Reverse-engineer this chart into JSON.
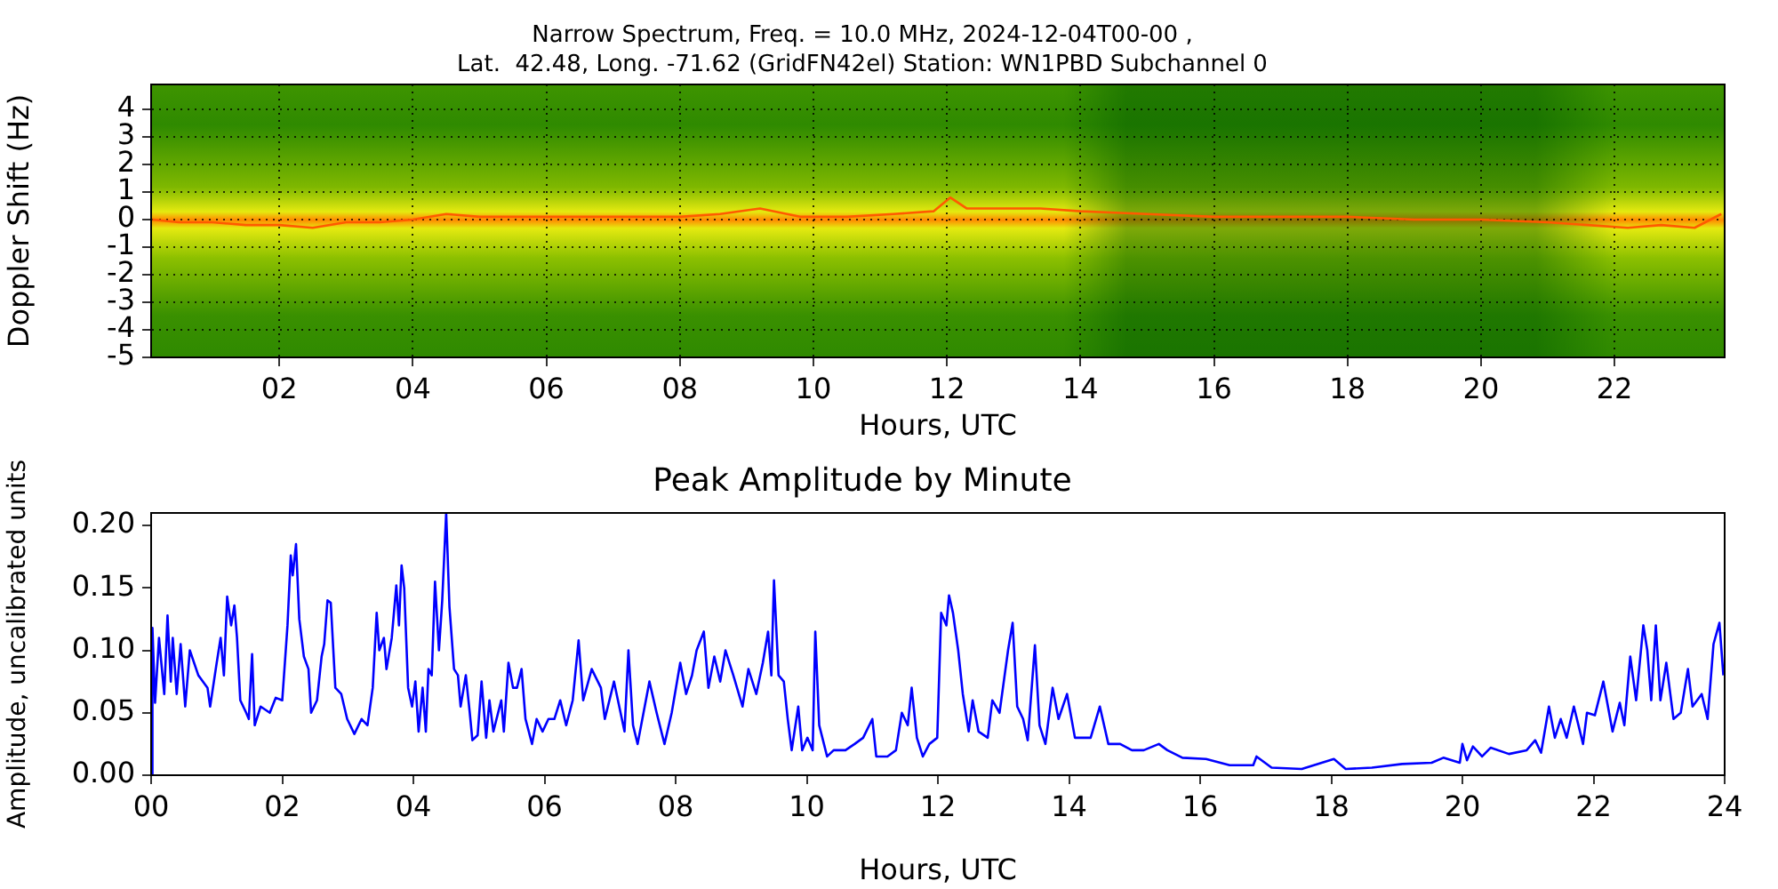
{
  "chart_data": [
    {
      "type": "line",
      "title": "Narrow Spectrum, Freq. = 10.0 MHz, 2024-12-04T00-00 ,\nLat.  42.48, Long. -71.62 (GridFN42el) Station: WN1PBD Subchannel 0",
      "xlabel": "Hours, UTC",
      "ylabel": "Doppler Shift (Hz)",
      "xlim": [
        0.08,
        23.65
      ],
      "xticks": [
        {
          "value": 2,
          "label": "02"
        },
        {
          "value": 4,
          "label": "04"
        },
        {
          "value": 6,
          "label": "06"
        },
        {
          "value": 8,
          "label": "08"
        },
        {
          "value": 10,
          "label": "10"
        },
        {
          "value": 12,
          "label": "12"
        },
        {
          "value": 14,
          "label": "14"
        },
        {
          "value": 16,
          "label": "16"
        },
        {
          "value": 18,
          "label": "18"
        },
        {
          "value": 20,
          "label": "20"
        },
        {
          "value": 22,
          "label": "22"
        }
      ],
      "ylim": [
        -5,
        4.9
      ],
      "yticks": [
        -5,
        -4,
        -3,
        -2,
        -1,
        0,
        1,
        2,
        3,
        4
      ],
      "grid": true,
      "marker": "none",
      "line_style": "solid",
      "series": [
        {
          "color": "#ff5a00",
          "x": [
            0.1,
            0.5,
            1.0,
            1.5,
            2.0,
            2.5,
            3.0,
            3.5,
            4.0,
            4.5,
            5.0,
            6.0,
            7.0,
            8.0,
            8.6,
            9.2,
            9.8,
            10.5,
            11.2,
            11.8,
            12.05,
            12.3,
            12.8,
            13.4,
            14.0,
            15.0,
            16.0,
            17.0,
            18.0,
            19.0,
            20.0,
            21.0,
            21.6,
            22.2,
            22.7,
            23.2,
            23.6
          ],
          "values": [
            0.0,
            -0.1,
            -0.1,
            -0.2,
            -0.2,
            -0.3,
            -0.1,
            -0.1,
            0.0,
            0.2,
            0.1,
            0.1,
            0.1,
            0.1,
            0.2,
            0.4,
            0.1,
            0.1,
            0.2,
            0.3,
            0.8,
            0.4,
            0.4,
            0.4,
            0.3,
            0.2,
            0.1,
            0.1,
            0.1,
            0.0,
            0.0,
            -0.1,
            -0.2,
            -0.3,
            -0.2,
            -0.3,
            0.2
          ]
        }
      ]
    },
    {
      "type": "line",
      "title": "Peak Amplitude by Minute",
      "xlabel": "Hours, UTC",
      "ylabel": "Amplitude, uncalibrated units",
      "xlim": [
        0,
        24
      ],
      "xticks": [
        {
          "value": 0,
          "label": "00"
        },
        {
          "value": 2,
          "label": "02"
        },
        {
          "value": 4,
          "label": "04"
        },
        {
          "value": 6,
          "label": "06"
        },
        {
          "value": 8,
          "label": "08"
        },
        {
          "value": 10,
          "label": "10"
        },
        {
          "value": 12,
          "label": "12"
        },
        {
          "value": 14,
          "label": "14"
        },
        {
          "value": 16,
          "label": "16"
        },
        {
          "value": 18,
          "label": "18"
        },
        {
          "value": 20,
          "label": "20"
        },
        {
          "value": 22,
          "label": "22"
        },
        {
          "value": 24,
          "label": "24"
        }
      ],
      "ylim": [
        0,
        0.21
      ],
      "yticks": [
        {
          "value": 0,
          "label": "0.00"
        },
        {
          "value": 0.05,
          "label": "0.05"
        },
        {
          "value": 0.1,
          "label": "0.10"
        },
        {
          "value": 0.15,
          "label": "0.15"
        },
        {
          "value": 0.2,
          "label": "0.20"
        }
      ],
      "grid": false,
      "marker": "none",
      "line_style": "solid",
      "series": [
        {
          "color": "#0000ff",
          "x": [
            0,
            0.02,
            0.06,
            0.12,
            0.2,
            0.25,
            0.3,
            0.33,
            0.39,
            0.45,
            0.52,
            0.59,
            0.72,
            0.86,
            0.9,
            1.0,
            1.06,
            1.11,
            1.16,
            1.22,
            1.27,
            1.31,
            1.36,
            1.45,
            1.49,
            1.54,
            1.58,
            1.67,
            1.81,
            1.9,
            2.0,
            2.08,
            2.13,
            2.16,
            2.21,
            2.26,
            2.33,
            2.4,
            2.44,
            2.53,
            2.6,
            2.64,
            2.69,
            2.74,
            2.81,
            2.9,
            2.99,
            3.1,
            3.21,
            3.3,
            3.38,
            3.44,
            3.48,
            3.55,
            3.59,
            3.67,
            3.74,
            3.78,
            3.82,
            3.86,
            3.92,
            3.98,
            4.03,
            4.08,
            4.14,
            4.19,
            4.23,
            4.28,
            4.33,
            4.39,
            4.44,
            4.5,
            4.55,
            4.62,
            4.68,
            4.72,
            4.8,
            4.86,
            4.9,
            4.98,
            5.04,
            5.11,
            5.16,
            5.22,
            5.34,
            5.38,
            5.45,
            5.52,
            5.58,
            5.65,
            5.71,
            5.81,
            5.88,
            5.97,
            6.06,
            6.15,
            6.24,
            6.33,
            6.43,
            6.52,
            6.59,
            6.72,
            6.86,
            6.92,
            7.06,
            7.22,
            7.28,
            7.35,
            7.42,
            7.51,
            7.6,
            7.71,
            7.83,
            7.94,
            8.07,
            8.16,
            8.25,
            8.32,
            8.43,
            8.5,
            8.59,
            8.68,
            8.76,
            8.88,
            9.02,
            9.11,
            9.23,
            9.33,
            9.41,
            9.46,
            9.5,
            9.57,
            9.65,
            9.71,
            9.77,
            9.87,
            9.93,
            10.01,
            10.09,
            10.13,
            10.19,
            10.31,
            10.41,
            10.59,
            10.73,
            10.86,
            11.0,
            11.06,
            11.23,
            11.36,
            11.45,
            11.54,
            11.6,
            11.68,
            11.77,
            11.87,
            11.99,
            12.05,
            12.13,
            12.17,
            12.23,
            12.31,
            12.38,
            12.47,
            12.53,
            12.62,
            12.76,
            12.83,
            12.94,
            13.07,
            13.14,
            13.21,
            13.3,
            13.37,
            13.48,
            13.55,
            13.64,
            13.75,
            13.84,
            13.97,
            14.09,
            14.2,
            14.33,
            14.47,
            14.6,
            14.78,
            14.96,
            15.14,
            15.37,
            15.5,
            15.73,
            16.09,
            16.45,
            16.81,
            16.86,
            17.09,
            17.55,
            18.04,
            18.22,
            18.62,
            19.08,
            19.53,
            19.71,
            19.96,
            20.0,
            20.07,
            20.16,
            20.3,
            20.43,
            20.71,
            20.98,
            21.11,
            21.2,
            21.32,
            21.41,
            21.5,
            21.59,
            21.7,
            21.84,
            21.9,
            22.02,
            22.15,
            22.29,
            22.4,
            22.47,
            22.56,
            22.65,
            22.76,
            22.82,
            22.88,
            22.95,
            23.02,
            23.11,
            23.22,
            23.33,
            23.44,
            23.51,
            23.65,
            23.74,
            23.83,
            23.92,
            23.98
          ],
          "values": [
            0.0,
            0.118,
            0.058,
            0.11,
            0.065,
            0.128,
            0.075,
            0.11,
            0.065,
            0.105,
            0.055,
            0.1,
            0.08,
            0.07,
            0.055,
            0.09,
            0.11,
            0.08,
            0.143,
            0.12,
            0.136,
            0.11,
            0.06,
            0.05,
            0.045,
            0.097,
            0.04,
            0.055,
            0.05,
            0.062,
            0.06,
            0.12,
            0.176,
            0.16,
            0.185,
            0.125,
            0.095,
            0.085,
            0.05,
            0.06,
            0.095,
            0.105,
            0.14,
            0.138,
            0.07,
            0.065,
            0.045,
            0.033,
            0.045,
            0.04,
            0.07,
            0.13,
            0.1,
            0.11,
            0.085,
            0.11,
            0.152,
            0.12,
            0.168,
            0.15,
            0.07,
            0.055,
            0.075,
            0.035,
            0.07,
            0.035,
            0.085,
            0.08,
            0.155,
            0.1,
            0.14,
            0.21,
            0.135,
            0.085,
            0.08,
            0.055,
            0.08,
            0.05,
            0.028,
            0.032,
            0.075,
            0.03,
            0.06,
            0.035,
            0.06,
            0.035,
            0.09,
            0.07,
            0.07,
            0.085,
            0.045,
            0.025,
            0.045,
            0.035,
            0.045,
            0.045,
            0.06,
            0.04,
            0.06,
            0.108,
            0.06,
            0.085,
            0.07,
            0.045,
            0.075,
            0.035,
            0.1,
            0.04,
            0.025,
            0.05,
            0.075,
            0.05,
            0.025,
            0.05,
            0.09,
            0.065,
            0.08,
            0.1,
            0.115,
            0.07,
            0.095,
            0.075,
            0.1,
            0.08,
            0.055,
            0.085,
            0.065,
            0.09,
            0.115,
            0.08,
            0.156,
            0.08,
            0.075,
            0.045,
            0.02,
            0.055,
            0.02,
            0.03,
            0.02,
            0.115,
            0.04,
            0.015,
            0.02,
            0.02,
            0.025,
            0.03,
            0.045,
            0.015,
            0.015,
            0.02,
            0.05,
            0.04,
            0.07,
            0.03,
            0.015,
            0.025,
            0.03,
            0.13,
            0.12,
            0.144,
            0.13,
            0.1,
            0.065,
            0.035,
            0.06,
            0.035,
            0.03,
            0.06,
            0.05,
            0.1,
            0.122,
            0.055,
            0.045,
            0.028,
            0.104,
            0.04,
            0.025,
            0.07,
            0.045,
            0.065,
            0.03,
            0.03,
            0.03,
            0.055,
            0.025,
            0.025,
            0.02,
            0.02,
            0.025,
            0.02,
            0.014,
            0.013,
            0.008,
            0.008,
            0.015,
            0.006,
            0.005,
            0.013,
            0.005,
            0.006,
            0.009,
            0.01,
            0.014,
            0.01,
            0.025,
            0.012,
            0.023,
            0.015,
            0.022,
            0.017,
            0.02,
            0.028,
            0.018,
            0.055,
            0.03,
            0.045,
            0.03,
            0.055,
            0.025,
            0.05,
            0.048,
            0.075,
            0.035,
            0.058,
            0.04,
            0.095,
            0.06,
            0.12,
            0.1,
            0.06,
            0.12,
            0.06,
            0.09,
            0.045,
            0.05,
            0.085,
            0.055,
            0.065,
            0.045,
            0.105,
            0.122,
            0.08
          ]
        }
      ]
    }
  ]
}
